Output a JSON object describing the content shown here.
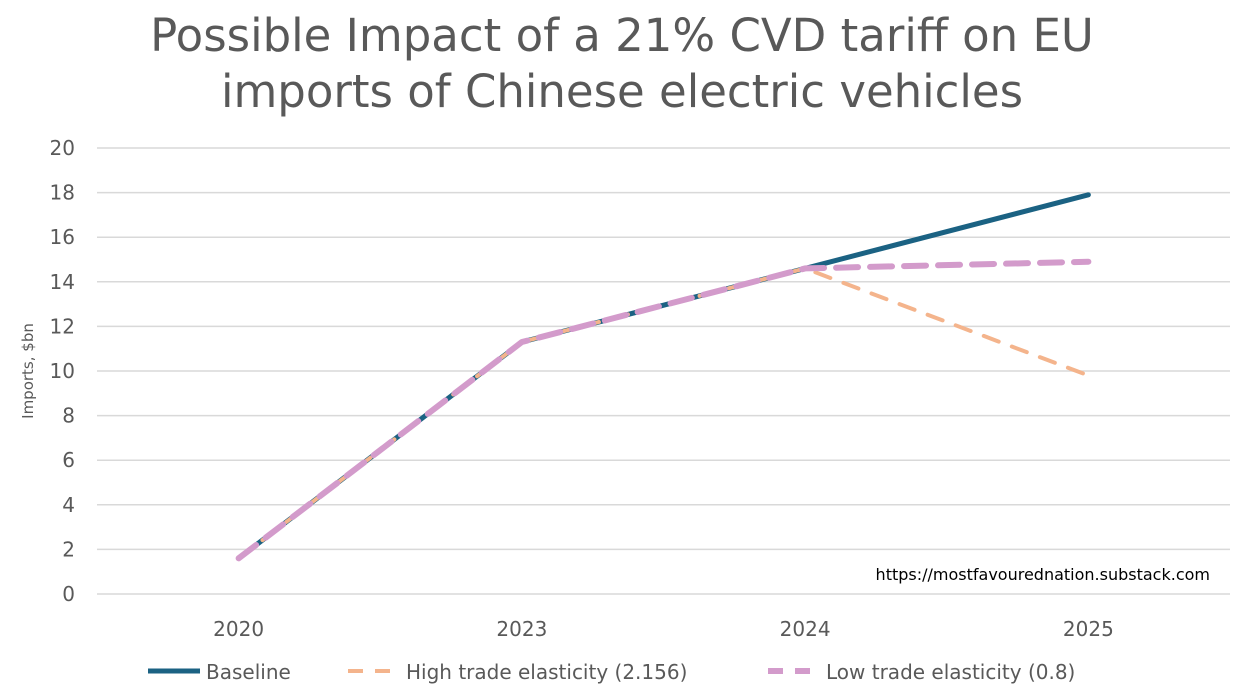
{
  "chart_data": {
    "type": "line",
    "title": "Possible Impact of a 21% CVD tariff on EU imports of Chinese electric vehicles",
    "title_lines": [
      "Possible Impact of a 21% CVD tariff on EU",
      "imports of Chinese electric vehicles"
    ],
    "xlabel": "",
    "ylabel": "Imports, $bn",
    "ylim": [
      0,
      20
    ],
    "yticks": [
      0,
      2,
      4,
      6,
      8,
      10,
      12,
      14,
      16,
      18,
      20
    ],
    "categories": [
      "2020",
      "2023",
      "2024",
      "2025"
    ],
    "grid": true,
    "legend_position": "bottom",
    "annotation": "https://mostfavourednation.substack.com",
    "series": [
      {
        "name": "Baseline",
        "values": [
          1.6,
          11.3,
          14.6,
          17.9
        ],
        "color": "#1b6283",
        "style": "solid"
      },
      {
        "name": "High trade elasticity (2.156)",
        "values": [
          1.6,
          11.3,
          14.6,
          9.8
        ],
        "color": "#f4b48c",
        "style": "dashed"
      },
      {
        "name": "Low trade elasticity (0.8)",
        "values": [
          1.6,
          11.3,
          14.6,
          14.9
        ],
        "color": "#d39bcb",
        "style": "dashed-thick"
      }
    ]
  }
}
